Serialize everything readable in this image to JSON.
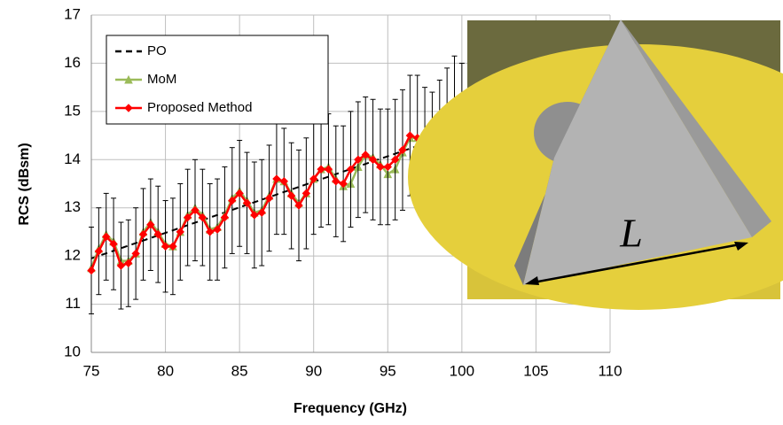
{
  "chart_data": {
    "type": "line",
    "x_label": "Frequency (GHz)",
    "y_label": "RCS (dBsm)",
    "xlim": [
      75,
      110
    ],
    "xticks": [
      75,
      80,
      85,
      90,
      95,
      100,
      105,
      110
    ],
    "ylim": [
      10,
      17
    ],
    "yticks": [
      10,
      11,
      12,
      13,
      14,
      15,
      16,
      17
    ],
    "grid": true,
    "x": [
      75,
      75.5,
      76,
      76.5,
      77,
      77.5,
      78,
      78.5,
      79,
      79.5,
      80,
      80.5,
      81,
      81.5,
      82,
      82.5,
      83,
      83.5,
      84,
      84.5,
      85,
      85.5,
      86,
      86.5,
      87,
      87.5,
      88,
      88.5,
      89,
      89.5,
      90,
      90.5,
      91,
      91.5,
      92,
      92.5,
      93,
      93.5,
      94,
      94.5,
      95,
      95.5,
      96,
      96.5,
      97,
      97.5,
      98,
      98.5,
      99,
      99.5,
      100
    ],
    "series": [
      {
        "name": "PO",
        "color": "#000000",
        "dashed": true,
        "x": [
          75,
          100
        ],
        "values": [
          11.95,
          14.6
        ]
      },
      {
        "name": "MoM",
        "color": "#9bbb59",
        "marker": "triangle",
        "values": [
          11.75,
          12.15,
          12.45,
          12.3,
          11.9,
          11.9,
          12.05,
          12.5,
          12.7,
          12.5,
          12.25,
          12.2,
          12.5,
          12.85,
          13.0,
          12.85,
          12.55,
          12.6,
          12.85,
          13.2,
          13.35,
          13.15,
          12.9,
          12.95,
          13.25,
          13.6,
          13.55,
          13.3,
          13.1,
          13.3,
          13.6,
          13.8,
          13.85,
          13.6,
          13.45,
          13.5,
          13.85,
          14.1,
          14.05,
          13.9,
          13.7,
          13.8,
          14.15,
          14.45,
          14.45,
          14.2,
          14.0,
          14.2,
          14.5,
          14.8,
          14.7
        ]
      },
      {
        "name": "Proposed Method",
        "color": "#ff0000",
        "marker": "diamond",
        "values": [
          11.7,
          12.1,
          12.4,
          12.25,
          11.8,
          11.85,
          12.05,
          12.45,
          12.65,
          12.45,
          12.2,
          12.2,
          12.5,
          12.8,
          12.95,
          12.8,
          12.5,
          12.55,
          12.8,
          13.15,
          13.3,
          13.1,
          12.85,
          12.9,
          13.2,
          13.6,
          13.55,
          13.25,
          13.05,
          13.3,
          13.6,
          13.8,
          13.8,
          13.55,
          13.5,
          13.8,
          14.0,
          14.1,
          14.0,
          13.85,
          13.85,
          14.0,
          14.2,
          14.5,
          14.45,
          14.25,
          14.15,
          14.35,
          14.6,
          14.85,
          14.7
        ],
        "errors": [
          0.9,
          0.9,
          0.9,
          0.95,
          0.9,
          0.9,
          0.95,
          0.95,
          0.95,
          1.0,
          0.95,
          1.0,
          1.0,
          1.0,
          1.05,
          1.0,
          1.0,
          1.05,
          1.05,
          1.1,
          1.1,
          1.05,
          1.1,
          1.1,
          1.1,
          1.15,
          1.1,
          1.1,
          1.15,
          1.15,
          1.15,
          1.2,
          1.15,
          1.15,
          1.2,
          1.2,
          1.2,
          1.2,
          1.25,
          1.2,
          1.2,
          1.25,
          1.25,
          1.25,
          1.3,
          1.25,
          1.25,
          1.3,
          1.3,
          1.3,
          1.3
        ]
      }
    ],
    "inset_label": "L"
  }
}
